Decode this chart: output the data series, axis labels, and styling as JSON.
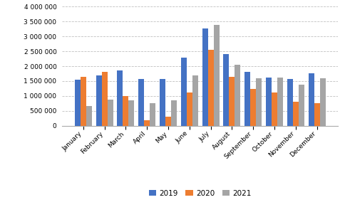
{
  "months": [
    "January",
    "February",
    "March",
    "April",
    "May",
    "June",
    "July",
    "August",
    "September",
    "October",
    "November",
    "December"
  ],
  "series": {
    "2019": [
      1540000,
      1700000,
      1850000,
      1570000,
      1570000,
      2280000,
      3260000,
      2400000,
      1820000,
      1630000,
      1560000,
      1770000
    ],
    "2020": [
      1640000,
      1820000,
      1000000,
      200000,
      300000,
      1110000,
      2560000,
      1650000,
      1230000,
      1110000,
      810000,
      760000
    ],
    "2021": [
      670000,
      890000,
      850000,
      770000,
      860000,
      1700000,
      3380000,
      2060000,
      1590000,
      1610000,
      1380000,
      1590000
    ]
  },
  "colors": {
    "2019": "#4472C4",
    "2020": "#ED7D31",
    "2021": "#A5A5A5"
  },
  "ylim": [
    0,
    4000000
  ],
  "yticks": [
    0,
    500000,
    1000000,
    1500000,
    2000000,
    2500000,
    3000000,
    3500000,
    4000000
  ],
  "legend_labels": [
    "2019",
    "2020",
    "2021"
  ],
  "grid_color": "#C0C0C0",
  "bar_width": 0.27
}
